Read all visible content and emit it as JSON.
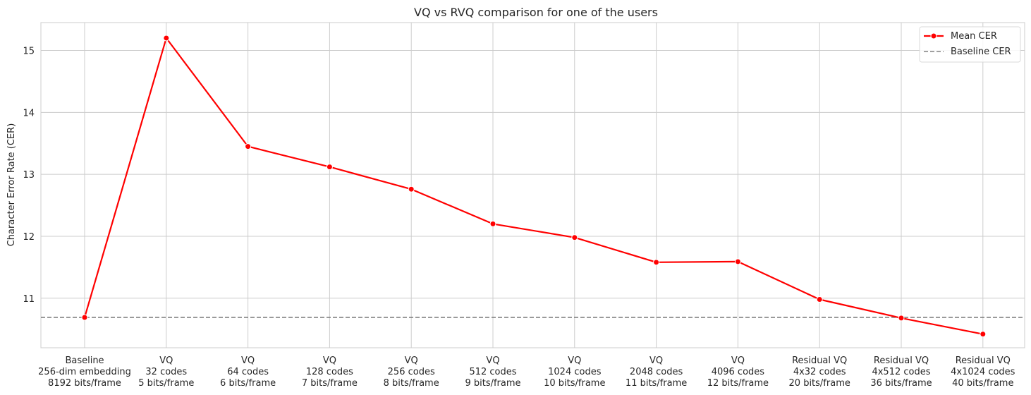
{
  "chart_data": {
    "type": "line",
    "title": "VQ vs RVQ comparison for one of the users",
    "xlabel": "",
    "ylabel": "Character Error Rate (CER)",
    "categories": [
      [
        "Baseline",
        "256-dim embedding",
        "8192 bits/frame"
      ],
      [
        "VQ",
        "32 codes",
        "5 bits/frame"
      ],
      [
        "VQ",
        "64 codes",
        "6 bits/frame"
      ],
      [
        "VQ",
        "128 codes",
        "7 bits/frame"
      ],
      [
        "VQ",
        "256 codes",
        "8 bits/frame"
      ],
      [
        "VQ",
        "512 codes",
        "9 bits/frame"
      ],
      [
        "VQ",
        "1024 codes",
        "10 bits/frame"
      ],
      [
        "VQ",
        "2048 codes",
        "11 bits/frame"
      ],
      [
        "VQ",
        "4096 codes",
        "12 bits/frame"
      ],
      [
        "Residual VQ",
        "4x32 codes",
        "20 bits/frame"
      ],
      [
        "Residual VQ",
        "4x512 codes",
        "36 bits/frame"
      ],
      [
        "Residual VQ",
        "4x1024 codes",
        "40 bits/frame"
      ]
    ],
    "series": [
      {
        "name": "Mean CER",
        "color": "#ff0000",
        "values": [
          10.69,
          15.2,
          13.45,
          13.12,
          12.76,
          12.2,
          11.98,
          11.58,
          11.59,
          10.98,
          10.68,
          10.42
        ]
      }
    ],
    "reference_lines": [
      {
        "name": "Baseline CER",
        "y": 10.69,
        "color": "#808080",
        "style": "dashed"
      }
    ],
    "ylim": [
      10.2,
      15.45
    ],
    "yticks": [
      11,
      12,
      13,
      14,
      15
    ],
    "grid": true,
    "legend_position": "top-right"
  }
}
